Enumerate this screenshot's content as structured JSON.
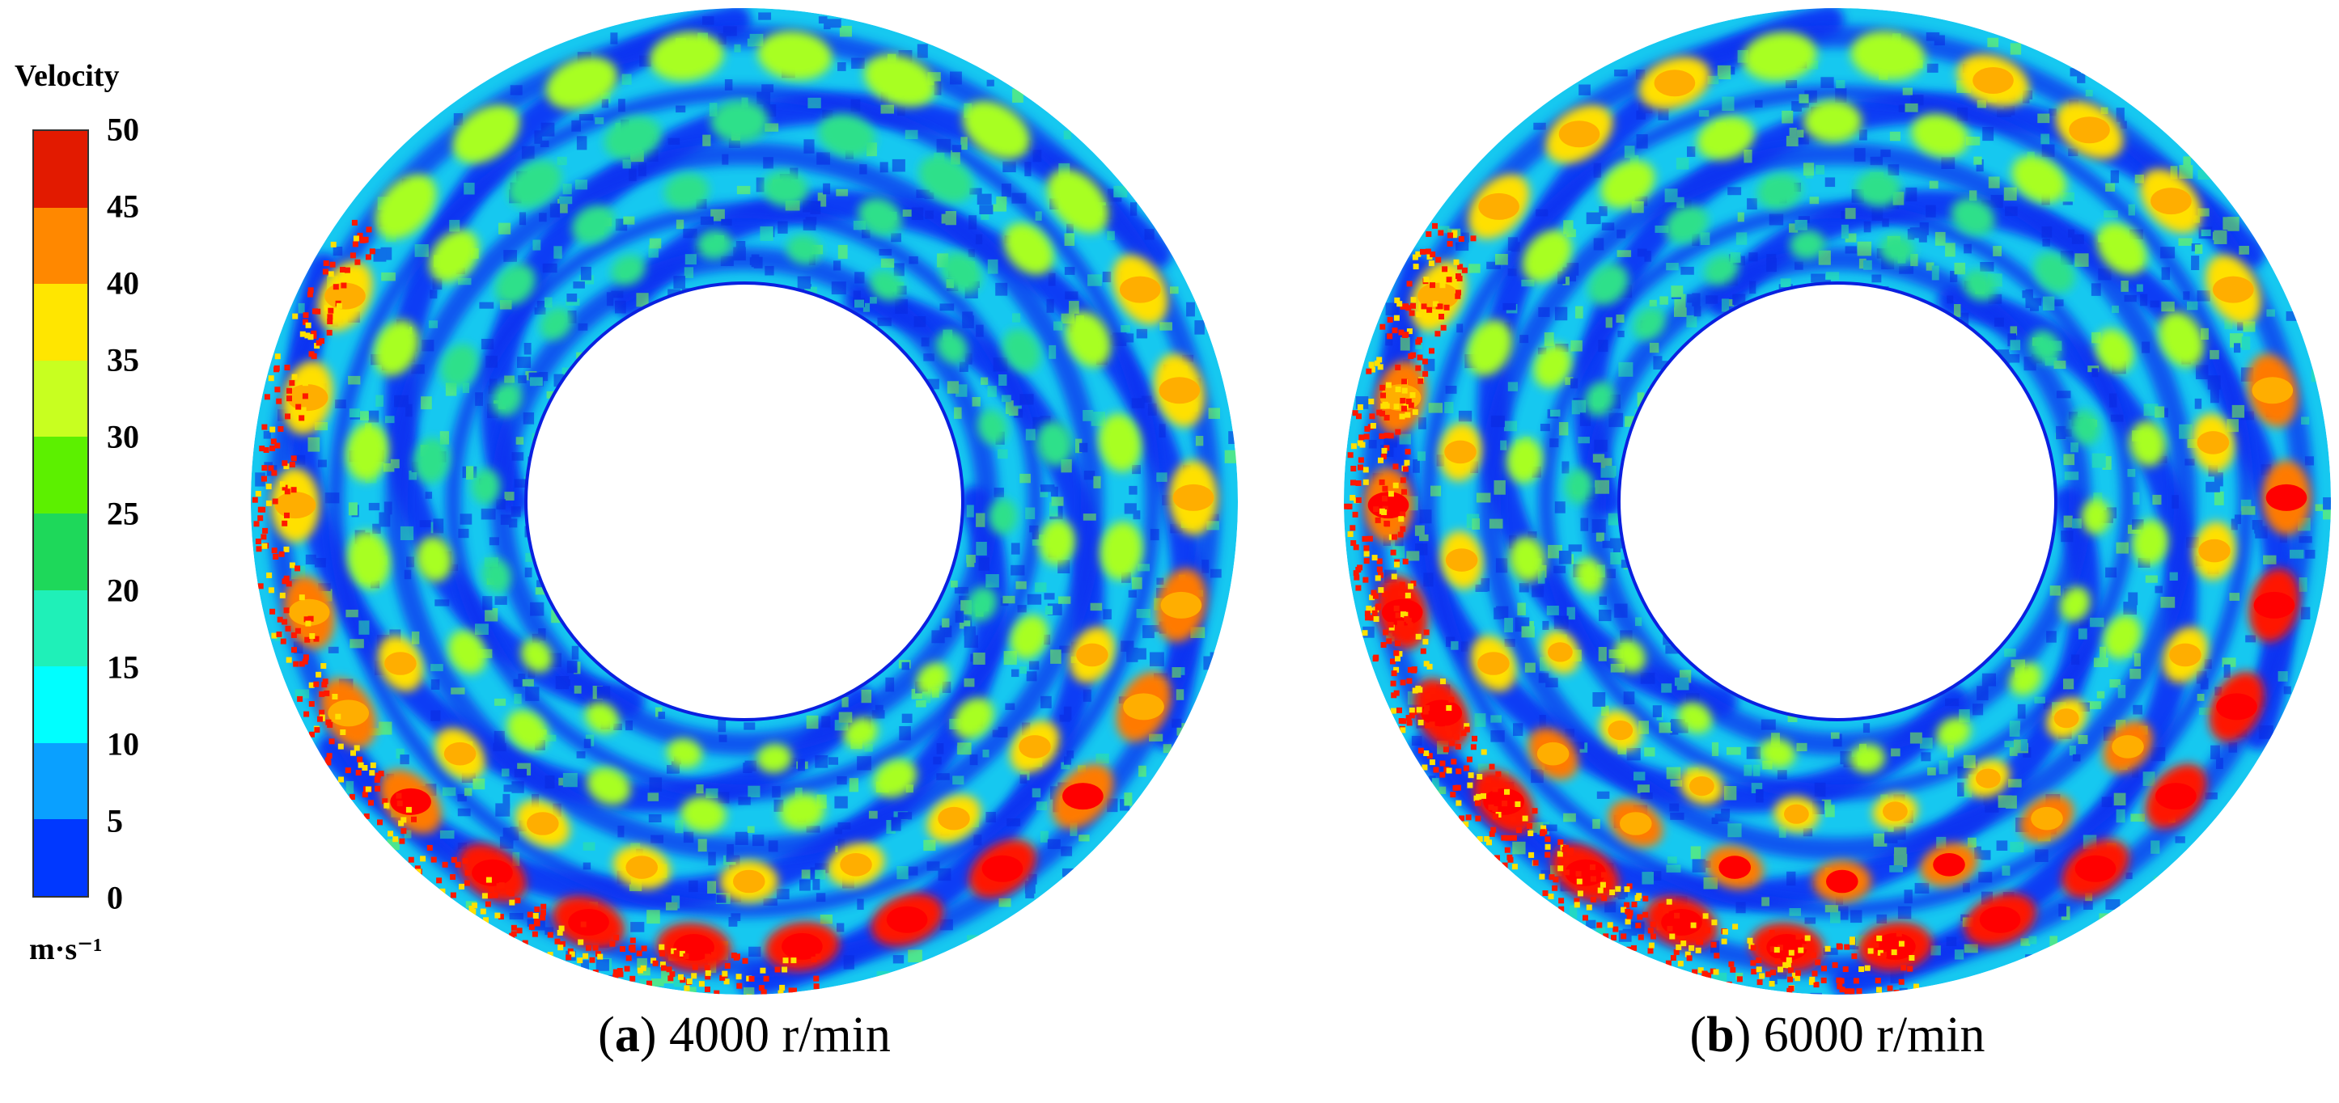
{
  "legend": {
    "title": "Velocity",
    "unit": "m·s⁻¹",
    "ticks": [
      "50",
      "45",
      "40",
      "35",
      "30",
      "25",
      "20",
      "15",
      "10",
      "5",
      "0"
    ],
    "colors": [
      "#ff1a00",
      "#ff8000",
      "#ffd000",
      "#ffff00",
      "#c8ff00",
      "#66ff00",
      "#19e84a",
      "#1cf0b0",
      "#00ffff",
      "#00b0ff",
      "#0050ff",
      "#0015f0"
    ]
  },
  "panels": [
    {
      "letter": "a",
      "label": "4000 r/min",
      "intensity": 0.55
    },
    {
      "letter": "b",
      "label": "6000 r/min",
      "intensity": 1.0
    }
  ]
}
